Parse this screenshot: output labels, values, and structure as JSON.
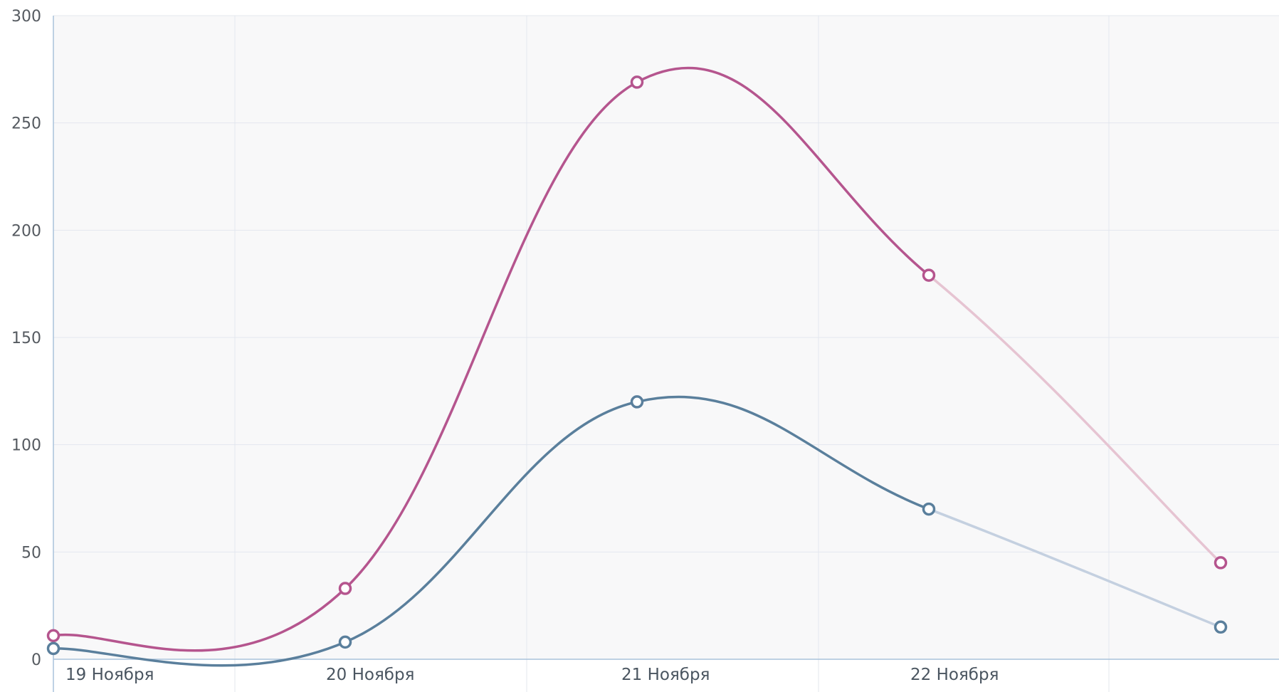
{
  "chart_data": {
    "type": "line",
    "title": "",
    "xlabel": "",
    "ylabel": "",
    "categories": [
      "19 Ноября",
      "20 Ноября",
      "21 Ноября",
      "22 Ноября",
      ""
    ],
    "ylim": [
      0,
      300
    ],
    "yticks": [
      "0",
      "50",
      "100",
      "150",
      "200",
      "250",
      "300"
    ],
    "grid": true,
    "series": [
      {
        "values": [
          11,
          33,
          269,
          179,
          45
        ],
        "color": "#b5558e",
        "tail_color": "#e6c4d2"
      },
      {
        "values": [
          5,
          8,
          120,
          70,
          15
        ],
        "color": "#5a7f9c",
        "tail_color": "#c4d0e0"
      }
    ],
    "colors": {
      "plot_bg": "#f8f8f9",
      "grid": "#e3e7ee",
      "axis": "#a9c2db"
    }
  }
}
